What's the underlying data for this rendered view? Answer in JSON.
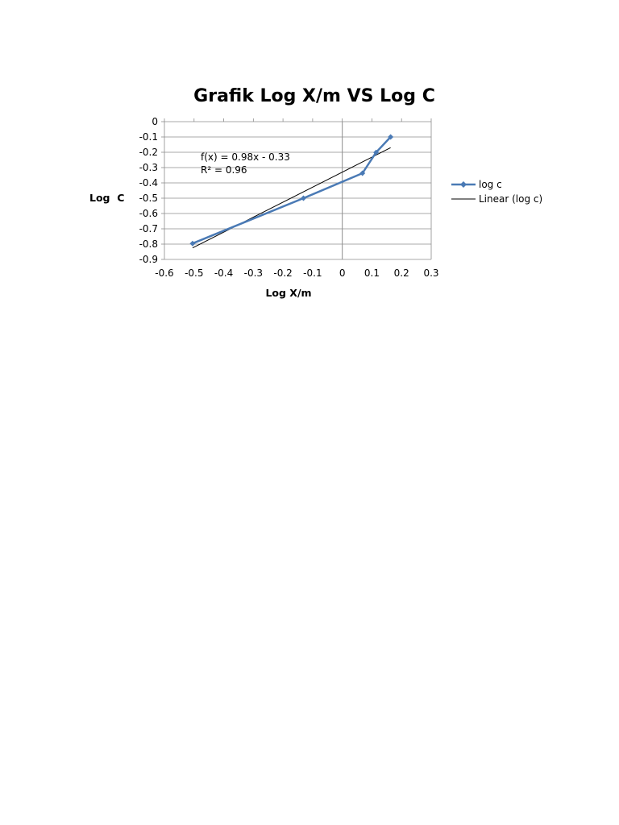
{
  "chart_data": {
    "type": "line",
    "title": "Grafik Log X/m VS Log C",
    "xlabel": "Log X/m",
    "ylabel": "Log  C",
    "xlim": [
      -0.6,
      0.3
    ],
    "ylim": [
      -0.9,
      0
    ],
    "x_ticks": [
      "-0.6",
      "-0.5",
      "-0.4",
      "-0.3",
      "-0.2",
      "-0.1",
      "0",
      "0.1",
      "0.2",
      "0.3"
    ],
    "y_ticks": [
      "0",
      "-0.1",
      "-0.2",
      "-0.3",
      "-0.4",
      "-0.5",
      "-0.6",
      "-0.7",
      "-0.8",
      "-0.9"
    ],
    "grid": "horizontal",
    "legend_position": "right",
    "series": [
      {
        "name": "log c",
        "color": "#4a7ab5",
        "marker": "diamond",
        "points": [
          {
            "x": -0.505,
            "y": -0.796
          },
          {
            "x": -0.131,
            "y": -0.5
          },
          {
            "x": 0.068,
            "y": -0.337
          },
          {
            "x": 0.114,
            "y": -0.201
          },
          {
            "x": 0.163,
            "y": -0.1
          }
        ]
      }
    ],
    "trendline": {
      "name": "Linear (log c)",
      "color": "#000000",
      "slope": 0.98,
      "intercept": -0.33,
      "x_range": [
        -0.505,
        0.163
      ]
    },
    "annotations": [
      "f(x) = 0.98x - 0.33",
      "R² = 0.96"
    ]
  }
}
